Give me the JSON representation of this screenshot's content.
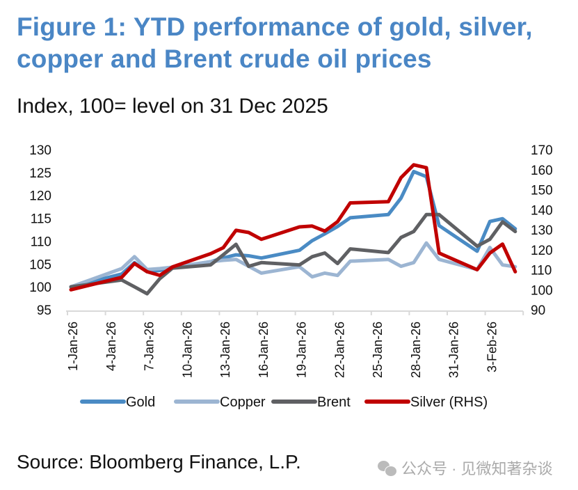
{
  "title": "Figure 1: YTD performance of gold, silver, copper and Brent crude oil prices",
  "subtitle": "Index, 100= level on 31 Dec 2025",
  "source": "Source: Bloomberg Finance, L.P.",
  "watermark": {
    "icon": "wechat-icon",
    "text": "公众号 · 见微知著杂谈"
  },
  "chart_data": {
    "type": "line",
    "x": [
      "2026-01-01",
      "2026-01-05",
      "2026-01-06",
      "2026-01-07",
      "2026-01-08",
      "2026-01-09",
      "2026-01-12",
      "2026-01-13",
      "2026-01-14",
      "2026-01-15",
      "2026-01-16",
      "2026-01-19",
      "2026-01-20",
      "2026-01-21",
      "2026-01-22",
      "2026-01-23",
      "2026-01-26",
      "2026-01-27",
      "2026-01-28",
      "2026-01-29",
      "2026-01-30",
      "2026-02-02",
      "2026-02-03",
      "2026-02-04",
      "2026-02-05"
    ],
    "x_tick_labels": [
      "1-Jan-26",
      "4-Jan-26",
      "7-Jan-26",
      "10-Jan-26",
      "13-Jan-26",
      "16-Jan-26",
      "19-Jan-26",
      "22-Jan-26",
      "25-Jan-26",
      "28-Jan-26",
      "31-Jan-26",
      "3-Feb-26"
    ],
    "y_left": {
      "ylim": [
        95,
        130
      ],
      "ticks": [
        "95",
        "100",
        "105",
        "110",
        "115",
        "120",
        "125",
        "130"
      ]
    },
    "y_right": {
      "ylim": [
        90,
        170
      ],
      "ticks": [
        "90",
        "100",
        "110",
        "120",
        "130",
        "140",
        "150",
        "160",
        "170"
      ]
    },
    "grid": false,
    "legend": "bottom",
    "series": [
      {
        "name": "Gold",
        "axis": "left",
        "color": "#4a8bc4",
        "values": [
          100,
          102.8,
          105.3,
          103.3,
          103.6,
          104.1,
          105.5,
          106.3,
          107,
          106.8,
          106.3,
          108,
          110.1,
          111.6,
          113.2,
          115.1,
          115.8,
          119.4,
          125.2,
          124.1,
          113.4,
          107.8,
          114.3,
          114.9,
          112.7
        ]
      },
      {
        "name": "Copper",
        "axis": "left",
        "color": "#9cb5d2",
        "values": [
          100,
          104,
          106.6,
          103.8,
          104,
          104.3,
          105.5,
          105.8,
          106,
          104.5,
          103,
          104.4,
          102.2,
          103,
          102.5,
          105.6,
          106,
          104.5,
          105.3,
          109.6,
          106,
          103.8,
          108.6,
          104.8,
          104.4
        ]
      },
      {
        "name": "Brent",
        "axis": "left",
        "color": "#5f6063",
        "values": [
          100,
          101.5,
          100,
          98.5,
          101.8,
          104.1,
          104.8,
          107,
          109.3,
          104.5,
          105.3,
          104.8,
          106.6,
          107.4,
          105.1,
          108.3,
          107.5,
          110.8,
          112.1,
          115.8,
          115.8,
          108.9,
          110.4,
          114.2,
          112.1
        ]
      },
      {
        "name": "Silver (RHS)",
        "axis": "right",
        "color": "#c00000",
        "values": [
          100,
          106.2,
          113.1,
          109,
          107.2,
          111.4,
          118,
          121,
          129.7,
          128.6,
          125.2,
          131.4,
          131.8,
          129.3,
          134,
          143.4,
          144,
          156,
          162.4,
          161,
          118.3,
          110,
          118.3,
          122.8,
          109
        ]
      }
    ]
  }
}
